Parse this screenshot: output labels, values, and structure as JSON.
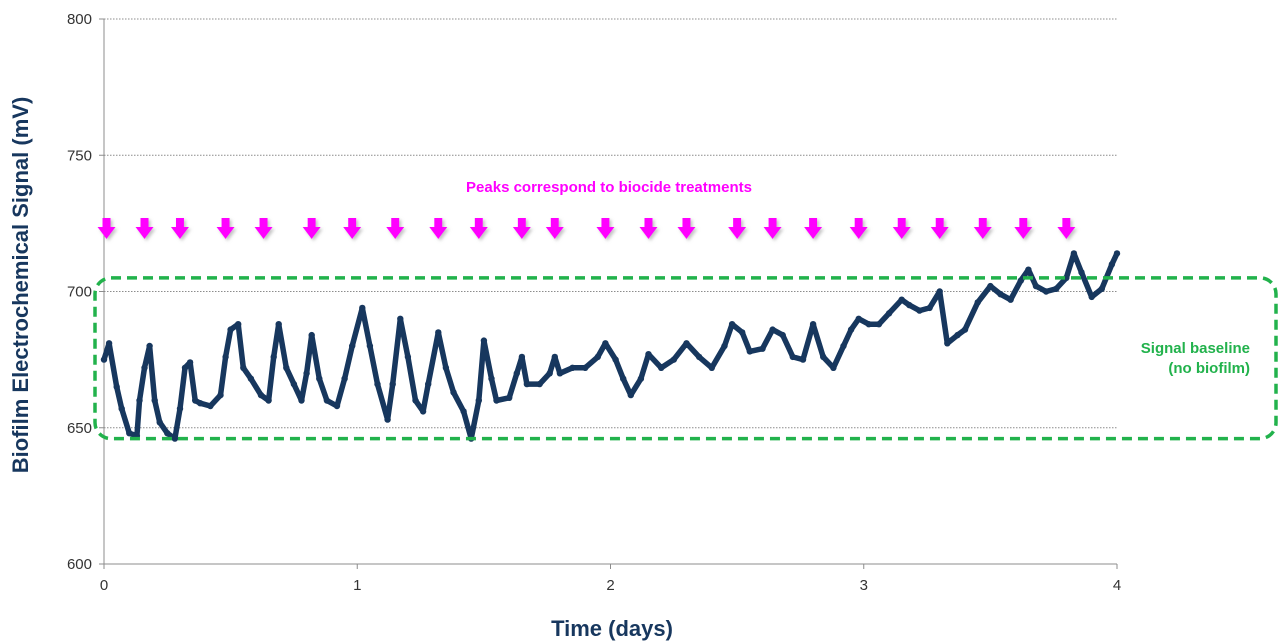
{
  "chart_data": {
    "type": "scatter",
    "xlabel": "Time (days)",
    "ylabel": "Biofilm Electrochemical Signal (mV)",
    "xlim": [
      0,
      4
    ],
    "ylim": [
      600,
      800
    ],
    "xticks": [
      "0",
      "1",
      "2",
      "3",
      "4"
    ],
    "yticks": [
      "600",
      "650",
      "700",
      "750",
      "800"
    ],
    "grid": "horizontal dotted",
    "series": [
      {
        "color": "#17375e",
        "points": [
          [
            0.0,
            675
          ],
          [
            0.02,
            681
          ],
          [
            0.05,
            665
          ],
          [
            0.07,
            657
          ],
          [
            0.1,
            648
          ],
          [
            0.13,
            647
          ],
          [
            0.14,
            660
          ],
          [
            0.16,
            672
          ],
          [
            0.18,
            680
          ],
          [
            0.2,
            660
          ],
          [
            0.22,
            652
          ],
          [
            0.25,
            648
          ],
          [
            0.28,
            646
          ],
          [
            0.3,
            657
          ],
          [
            0.32,
            672
          ],
          [
            0.34,
            674
          ],
          [
            0.36,
            660
          ],
          [
            0.38,
            659
          ],
          [
            0.42,
            658
          ],
          [
            0.46,
            662
          ],
          [
            0.48,
            676
          ],
          [
            0.5,
            686
          ],
          [
            0.53,
            688
          ],
          [
            0.55,
            672
          ],
          [
            0.58,
            668
          ],
          [
            0.62,
            662
          ],
          [
            0.65,
            660
          ],
          [
            0.67,
            676
          ],
          [
            0.69,
            688
          ],
          [
            0.72,
            672
          ],
          [
            0.75,
            666
          ],
          [
            0.78,
            660
          ],
          [
            0.8,
            670
          ],
          [
            0.82,
            684
          ],
          [
            0.85,
            668
          ],
          [
            0.88,
            660
          ],
          [
            0.92,
            658
          ],
          [
            0.95,
            668
          ],
          [
            0.98,
            680
          ],
          [
            1.02,
            694
          ],
          [
            1.05,
            680
          ],
          [
            1.08,
            666
          ],
          [
            1.12,
            653
          ],
          [
            1.14,
            666
          ],
          [
            1.17,
            690
          ],
          [
            1.2,
            676
          ],
          [
            1.23,
            660
          ],
          [
            1.26,
            656
          ],
          [
            1.28,
            666
          ],
          [
            1.32,
            685
          ],
          [
            1.35,
            672
          ],
          [
            1.38,
            663
          ],
          [
            1.42,
            656
          ],
          [
            1.45,
            646
          ],
          [
            1.48,
            660
          ],
          [
            1.5,
            682
          ],
          [
            1.53,
            668
          ],
          [
            1.55,
            660
          ],
          [
            1.6,
            661
          ],
          [
            1.63,
            670
          ],
          [
            1.65,
            676
          ],
          [
            1.67,
            666
          ],
          [
            1.72,
            666
          ],
          [
            1.76,
            670
          ],
          [
            1.78,
            676
          ],
          [
            1.8,
            670
          ],
          [
            1.85,
            672
          ],
          [
            1.9,
            672
          ],
          [
            1.95,
            676
          ],
          [
            1.98,
            681
          ],
          [
            2.02,
            675
          ],
          [
            2.05,
            668
          ],
          [
            2.08,
            662
          ],
          [
            2.12,
            668
          ],
          [
            2.15,
            677
          ],
          [
            2.2,
            672
          ],
          [
            2.25,
            675
          ],
          [
            2.3,
            681
          ],
          [
            2.35,
            676
          ],
          [
            2.4,
            672
          ],
          [
            2.45,
            680
          ],
          [
            2.48,
            688
          ],
          [
            2.52,
            685
          ],
          [
            2.55,
            678
          ],
          [
            2.6,
            679
          ],
          [
            2.64,
            686
          ],
          [
            2.68,
            684
          ],
          [
            2.72,
            676
          ],
          [
            2.76,
            675
          ],
          [
            2.8,
            688
          ],
          [
            2.84,
            676
          ],
          [
            2.88,
            672
          ],
          [
            2.92,
            680
          ],
          [
            2.95,
            686
          ],
          [
            2.98,
            690
          ],
          [
            3.02,
            688
          ],
          [
            3.06,
            688
          ],
          [
            3.1,
            692
          ],
          [
            3.15,
            697
          ],
          [
            3.18,
            695
          ],
          [
            3.22,
            693
          ],
          [
            3.26,
            694
          ],
          [
            3.3,
            700
          ],
          [
            3.33,
            681
          ],
          [
            3.37,
            684
          ],
          [
            3.4,
            686
          ],
          [
            3.45,
            696
          ],
          [
            3.5,
            702
          ],
          [
            3.54,
            699
          ],
          [
            3.58,
            697
          ],
          [
            3.62,
            704
          ],
          [
            3.65,
            708
          ],
          [
            3.68,
            702
          ],
          [
            3.72,
            700
          ],
          [
            3.76,
            701
          ],
          [
            3.8,
            705
          ],
          [
            3.83,
            714
          ],
          [
            3.86,
            707
          ],
          [
            3.9,
            698
          ],
          [
            3.94,
            701
          ],
          [
            3.98,
            710
          ],
          [
            4.0,
            714
          ]
        ]
      }
    ],
    "annotations": {
      "peaks_text": "Peaks correspond to biocide treatments",
      "peak_arrow_color": "#ff00ff",
      "peak_arrows_x": [
        0.01,
        0.16,
        0.3,
        0.48,
        0.63,
        0.82,
        0.98,
        1.15,
        1.32,
        1.48,
        1.65,
        1.78,
        1.98,
        2.15,
        2.3,
        2.5,
        2.64,
        2.8,
        2.98,
        3.15,
        3.3,
        3.47,
        3.63,
        3.8
      ],
      "baseline_text_line1": "Signal baseline",
      "baseline_text_line2": "(no biofilm)",
      "baseline_color": "#22b24c",
      "baseline_box_y": [
        646,
        705
      ]
    }
  }
}
